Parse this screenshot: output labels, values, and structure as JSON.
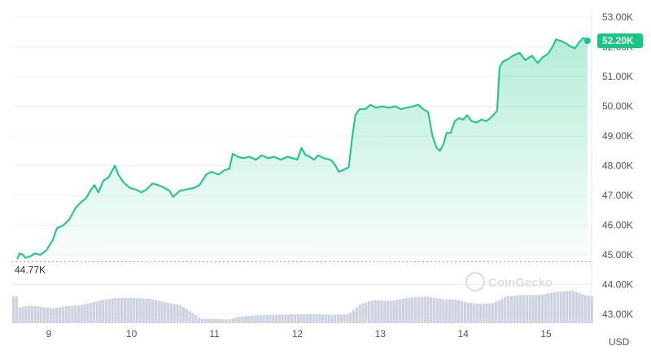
{
  "chart_data": {
    "type": "area",
    "currency_label": "USD",
    "last_price_label": "52.20K",
    "low_label": "44.77K",
    "watermark": "CoinGecko",
    "colors": {
      "line": "#16c784",
      "fill_top": "#16c784",
      "volume": "#c4c9db",
      "badge": "#16c784"
    },
    "x_ticks": [
      {
        "label": "9",
        "x": 9.0
      },
      {
        "label": "10",
        "x": 10.0
      },
      {
        "label": "11",
        "x": 11.0
      },
      {
        "label": "12",
        "x": 12.0
      },
      {
        "label": "13",
        "x": 13.0
      },
      {
        "label": "14",
        "x": 14.0
      },
      {
        "label": "15",
        "x": 15.0
      }
    ],
    "xlim": [
      8.55,
      15.55
    ],
    "y_ticks": [
      {
        "label": "53.00K",
        "v": 53000
      },
      {
        "label": "52.00K",
        "v": 52000
      },
      {
        "label": "51.00K",
        "v": 51000
      },
      {
        "label": "50.00K",
        "v": 50000
      },
      {
        "label": "49.00K",
        "v": 49000
      },
      {
        "label": "48.00K",
        "v": 48000
      },
      {
        "label": "47.00K",
        "v": 47000
      },
      {
        "label": "46.00K",
        "v": 46000
      },
      {
        "label": "45.00K",
        "v": 45000
      },
      {
        "label": "44.00K",
        "v": 44000
      },
      {
        "label": "43.00K",
        "v": 43000
      }
    ],
    "ylim": [
      42700,
      53300
    ],
    "price_ylim_floor": 44770,
    "price_series": [
      [
        8.62,
        44850
      ],
      [
        8.65,
        45050
      ],
      [
        8.69,
        45000
      ],
      [
        8.72,
        44900
      ],
      [
        8.78,
        44950
      ],
      [
        8.83,
        45050
      ],
      [
        8.9,
        45000
      ],
      [
        8.97,
        45150
      ],
      [
        9.05,
        45500
      ],
      [
        9.1,
        45900
      ],
      [
        9.18,
        46000
      ],
      [
        9.25,
        46200
      ],
      [
        9.33,
        46600
      ],
      [
        9.4,
        46800
      ],
      [
        9.45,
        46900
      ],
      [
        9.5,
        47150
      ],
      [
        9.55,
        47350
      ],
      [
        9.6,
        47100
      ],
      [
        9.66,
        47500
      ],
      [
        9.72,
        47600
      ],
      [
        9.8,
        48000
      ],
      [
        9.84,
        47700
      ],
      [
        9.9,
        47450
      ],
      [
        9.98,
        47250
      ],
      [
        10.05,
        47200
      ],
      [
        10.12,
        47100
      ],
      [
        10.18,
        47200
      ],
      [
        10.25,
        47400
      ],
      [
        10.32,
        47350
      ],
      [
        10.4,
        47250
      ],
      [
        10.46,
        47150
      ],
      [
        10.5,
        46950
      ],
      [
        10.58,
        47150
      ],
      [
        10.66,
        47200
      ],
      [
        10.75,
        47250
      ],
      [
        10.82,
        47350
      ],
      [
        10.9,
        47700
      ],
      [
        10.96,
        47800
      ],
      [
        11.05,
        47700
      ],
      [
        11.12,
        47850
      ],
      [
        11.18,
        47900
      ],
      [
        11.22,
        48400
      ],
      [
        11.28,
        48300
      ],
      [
        11.35,
        48250
      ],
      [
        11.42,
        48300
      ],
      [
        11.5,
        48200
      ],
      [
        11.57,
        48350
      ],
      [
        11.65,
        48250
      ],
      [
        11.72,
        48300
      ],
      [
        11.8,
        48200
      ],
      [
        11.88,
        48300
      ],
      [
        11.95,
        48250
      ],
      [
        12.0,
        48200
      ],
      [
        12.05,
        48600
      ],
      [
        12.1,
        48350
      ],
      [
        12.15,
        48300
      ],
      [
        12.2,
        48200
      ],
      [
        12.25,
        48350
      ],
      [
        12.32,
        48250
      ],
      [
        12.4,
        48200
      ],
      [
        12.45,
        48050
      ],
      [
        12.5,
        47800
      ],
      [
        12.55,
        47850
      ],
      [
        12.62,
        47950
      ],
      [
        12.66,
        48900
      ],
      [
        12.7,
        49700
      ],
      [
        12.75,
        49900
      ],
      [
        12.82,
        49900
      ],
      [
        12.88,
        50050
      ],
      [
        12.95,
        49950
      ],
      [
        13.02,
        50000
      ],
      [
        13.1,
        49950
      ],
      [
        13.18,
        50000
      ],
      [
        13.25,
        49900
      ],
      [
        13.32,
        49950
      ],
      [
        13.4,
        50000
      ],
      [
        13.46,
        50050
      ],
      [
        13.52,
        49900
      ],
      [
        13.58,
        49800
      ],
      [
        13.63,
        49000
      ],
      [
        13.68,
        48600
      ],
      [
        13.72,
        48500
      ],
      [
        13.76,
        48700
      ],
      [
        13.8,
        49100
      ],
      [
        13.85,
        49100
      ],
      [
        13.9,
        49500
      ],
      [
        13.95,
        49600
      ],
      [
        14.0,
        49550
      ],
      [
        14.05,
        49700
      ],
      [
        14.1,
        49500
      ],
      [
        14.16,
        49450
      ],
      [
        14.22,
        49550
      ],
      [
        14.28,
        49500
      ],
      [
        14.33,
        49600
      ],
      [
        14.38,
        49750
      ],
      [
        14.41,
        49850
      ],
      [
        14.44,
        51300
      ],
      [
        14.48,
        51500
      ],
      [
        14.55,
        51600
      ],
      [
        14.6,
        51700
      ],
      [
        14.68,
        51800
      ],
      [
        14.75,
        51550
      ],
      [
        14.83,
        51700
      ],
      [
        14.9,
        51450
      ],
      [
        14.96,
        51650
      ],
      [
        15.02,
        51750
      ],
      [
        15.08,
        52000
      ],
      [
        15.12,
        52250
      ],
      [
        15.18,
        52200
      ],
      [
        15.25,
        52100
      ],
      [
        15.3,
        52000
      ],
      [
        15.35,
        51950
      ],
      [
        15.4,
        52150
      ],
      [
        15.45,
        52300
      ],
      [
        15.5,
        52200
      ]
    ],
    "volume_series": [
      [
        8.62,
        43.22
      ],
      [
        8.75,
        43.3
      ],
      [
        8.9,
        43.25
      ],
      [
        9.05,
        43.2
      ],
      [
        9.2,
        43.28
      ],
      [
        9.35,
        43.3
      ],
      [
        9.48,
        43.38
      ],
      [
        9.62,
        43.48
      ],
      [
        9.8,
        43.55
      ],
      [
        10.0,
        43.55
      ],
      [
        10.2,
        43.52
      ],
      [
        10.4,
        43.4
      ],
      [
        10.58,
        43.3
      ],
      [
        10.72,
        43.05
      ],
      [
        10.82,
        42.85
      ],
      [
        11.0,
        42.85
      ],
      [
        11.15,
        42.82
      ],
      [
        11.28,
        42.92
      ],
      [
        11.5,
        42.97
      ],
      [
        11.75,
        42.98
      ],
      [
        12.0,
        43.0
      ],
      [
        12.2,
        43.0
      ],
      [
        12.4,
        42.98
      ],
      [
        12.6,
        43.0
      ],
      [
        12.75,
        43.35
      ],
      [
        12.9,
        43.48
      ],
      [
        13.1,
        43.45
      ],
      [
        13.3,
        43.55
      ],
      [
        13.55,
        43.6
      ],
      [
        13.75,
        43.5
      ],
      [
        13.9,
        43.5
      ],
      [
        14.0,
        43.42
      ],
      [
        14.18,
        43.35
      ],
      [
        14.35,
        43.38
      ],
      [
        14.5,
        43.6
      ],
      [
        14.7,
        43.65
      ],
      [
        14.9,
        43.65
      ],
      [
        15.1,
        43.75
      ],
      [
        15.3,
        43.8
      ],
      [
        15.45,
        43.65
      ],
      [
        15.55,
        43.6
      ]
    ]
  }
}
